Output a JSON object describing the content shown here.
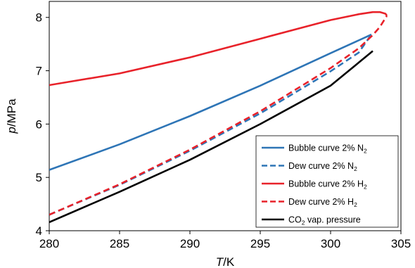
{
  "chart_data": {
    "type": "line",
    "xlabel_italic": "T",
    "xlabel_unit": "/K",
    "ylabel_italic": "p",
    "ylabel_unit": "/MPa",
    "xlim": [
      280,
      305
    ],
    "ylim": [
      4,
      8.3
    ],
    "xticks": [
      280,
      285,
      290,
      295,
      300,
      305
    ],
    "yticks": [
      4,
      5,
      6,
      7,
      8
    ],
    "grid": false,
    "legend_position": "bottom-right",
    "series": [
      {
        "name_main": "Bubble curve 2% N",
        "name_sub": "2",
        "color": "#2e75b6",
        "dash": "solid",
        "x": [
          280,
          285,
          290,
          295,
          300,
          302.5,
          302.9
        ],
        "y": [
          5.14,
          5.62,
          6.15,
          6.72,
          7.33,
          7.63,
          7.68
        ]
      },
      {
        "name_main": "Dew curve 2% N",
        "name_sub": "2",
        "color": "#2e75b6",
        "dash": "dashed",
        "x": [
          280,
          285,
          290,
          295,
          300,
          302,
          302.9
        ],
        "y": [
          4.3,
          4.86,
          5.5,
          6.2,
          6.99,
          7.34,
          7.68
        ]
      },
      {
        "name_main": "Bubble curve 2% H",
        "name_sub": "2",
        "color": "#e8222a",
        "dash": "solid",
        "x": [
          280,
          285,
          290,
          295,
          300,
          302,
          303,
          303.5,
          303.9,
          304.0
        ],
        "y": [
          6.73,
          6.95,
          7.25,
          7.6,
          7.95,
          8.06,
          8.1,
          8.1,
          8.07,
          8.03
        ]
      },
      {
        "name_main": "Dew curve 2% H",
        "name_sub": "2",
        "color": "#e8222a",
        "dash": "dashed",
        "x": [
          280,
          285,
          290,
          295,
          300,
          302,
          303,
          303.5,
          304.0
        ],
        "y": [
          4.3,
          4.87,
          5.52,
          6.24,
          7.05,
          7.42,
          7.67,
          7.82,
          8.03
        ]
      },
      {
        "name_main": "CO",
        "name_sub": "2",
        "name_rest": " vap. pressure",
        "color": "#000000",
        "dash": "solid",
        "x": [
          280,
          285,
          290,
          295,
          300,
          303
        ],
        "y": [
          4.16,
          4.73,
          5.33,
          6.0,
          6.72,
          7.37
        ]
      }
    ]
  }
}
